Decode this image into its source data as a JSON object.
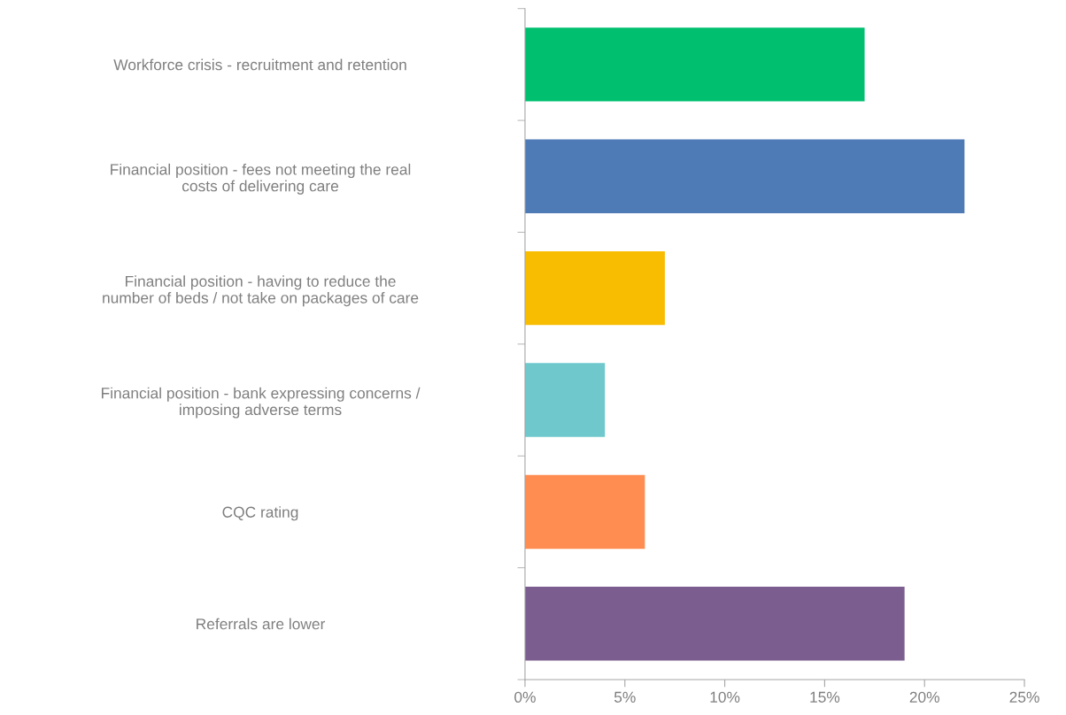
{
  "chart_data": {
    "type": "bar",
    "orientation": "horizontal",
    "categories": [
      "Workforce crisis - recruitment and retention",
      "Financial position - fees not meeting the real\ncosts of delivering care",
      "Financial position - having to reduce the\nnumber of beds / not take on packages of care",
      "Financial position - bank expressing concerns /\nimposing adverse terms",
      "CQC rating",
      "Referrals are lower"
    ],
    "values": [
      17,
      22,
      7,
      4,
      6,
      19
    ],
    "colors": [
      "#00bf6f",
      "#4e7ab5",
      "#f8bc00",
      "#6ec8cc",
      "#ff8c50",
      "#7b5e8f"
    ],
    "xlim": [
      0,
      25
    ],
    "xticks": [
      {
        "value": 0,
        "label": "0%"
      },
      {
        "value": 5,
        "label": "5%"
      },
      {
        "value": 10,
        "label": "10%"
      },
      {
        "value": 15,
        "label": "15%"
      },
      {
        "value": 20,
        "label": "20%"
      },
      {
        "value": 25,
        "label": "25%"
      }
    ],
    "grid": false,
    "legend": false
  }
}
